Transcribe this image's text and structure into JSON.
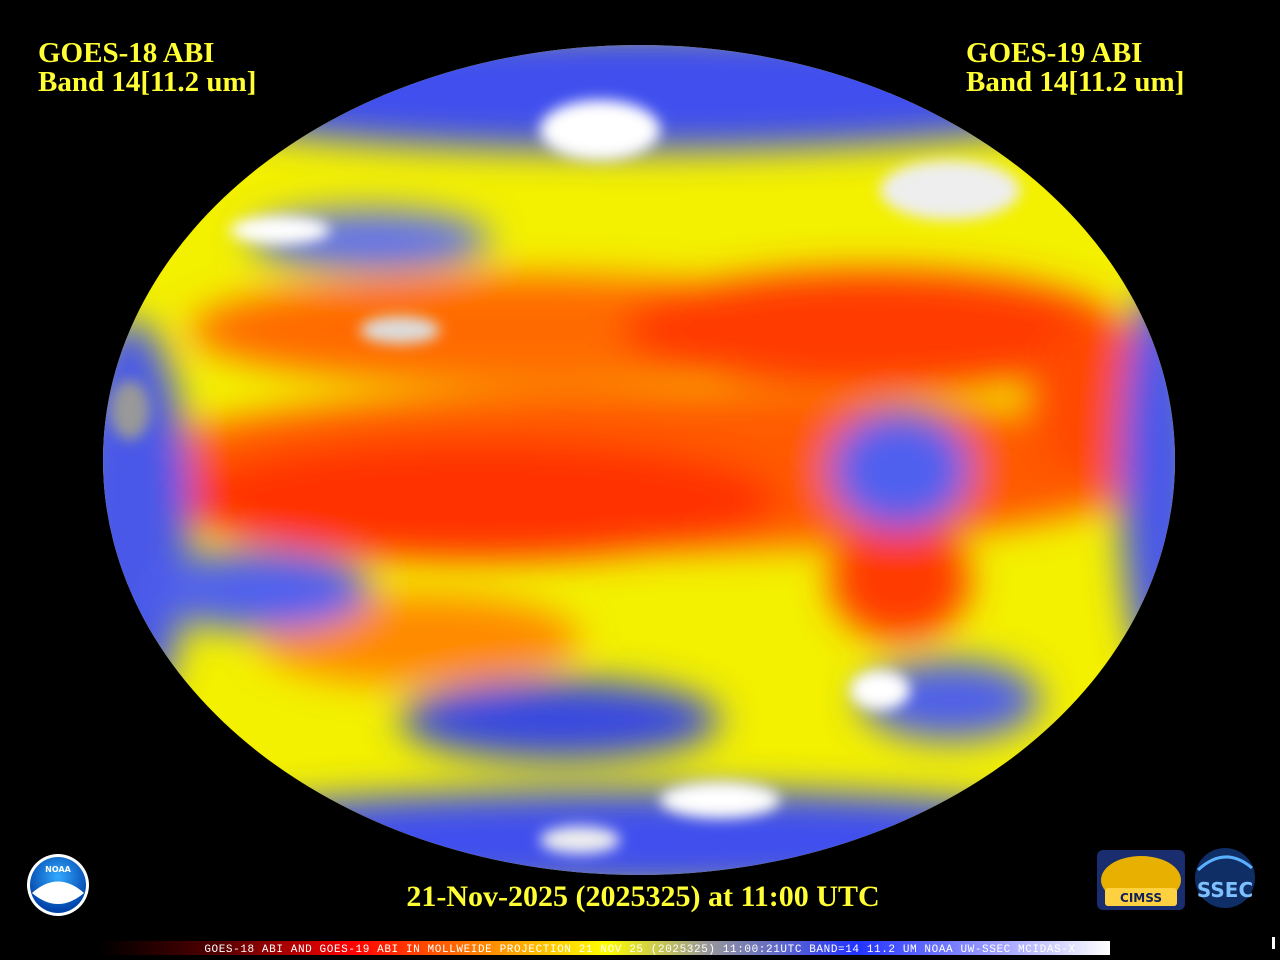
{
  "header": {
    "left": {
      "title": "GOES-18 ABI",
      "band": "Band 14[11.2 um]"
    },
    "right": {
      "title": "GOES-19 ABI",
      "band": "Band 14[11.2 um]"
    }
  },
  "timestamp": "21-Nov-2025 (2025325) at 11:00 UTC",
  "caption": "GOES-18 ABI AND GOES-19 ABI IN MOLLWEIDE PROJECTION 21 NOV 25 (2025325) 11:00:21UTC BAND=14 11.2 UM NOAA UW-SSEC MCIDAS-X",
  "logos": {
    "noaa": "NOAA",
    "cimss": "CIMSS",
    "ssec": "SSEC"
  }
}
